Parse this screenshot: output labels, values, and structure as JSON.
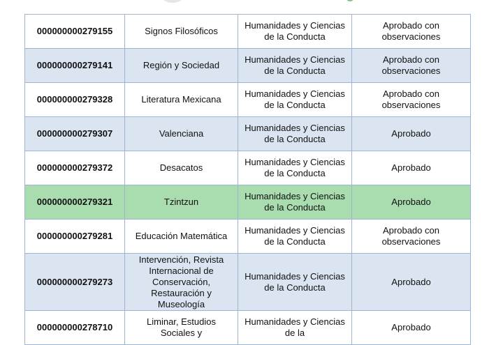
{
  "table": {
    "rows": [
      {
        "id": "000000000279155",
        "journal": "Signos Filosóficos",
        "area": "Humanidades y Ciencias de la Conducta",
        "status": "Aprobado con observaciones",
        "highlight": "none"
      },
      {
        "id": "000000000279141",
        "journal": "Región y Sociedad",
        "area": "Humanidades y Ciencias de la Conducta",
        "status": "Aprobado con observaciones",
        "highlight": "blue"
      },
      {
        "id": "000000000279328",
        "journal": "Literatura Mexicana",
        "area": "Humanidades y Ciencias de la Conducta",
        "status": "Aprobado con observaciones",
        "highlight": "none"
      },
      {
        "id": "000000000279307",
        "journal": "Valenciana",
        "area": "Humanidades y Ciencias de la Conducta",
        "status": "Aprobado",
        "highlight": "blue"
      },
      {
        "id": "000000000279372",
        "journal": "Desacatos",
        "area": "Humanidades y Ciencias de la Conducta",
        "status": "Aprobado",
        "highlight": "none"
      },
      {
        "id": "000000000279321",
        "journal": "Tzintzun",
        "area": "Humanidades y Ciencias de la Conducta",
        "status": "Aprobado",
        "highlight": "green"
      },
      {
        "id": "000000000279281",
        "journal": "Educación Matemática",
        "area": "Humanidades y Ciencias de la Conducta",
        "status": "Aprobado con observaciones",
        "highlight": "none"
      },
      {
        "id": "000000000279273",
        "journal": "Intervención, Revista Internacional de Conservación, Restauración y Museología",
        "area": "Humanidades y Ciencias de la Conducta",
        "status": "Aprobado",
        "highlight": "blue"
      },
      {
        "id": "000000000278710",
        "journal": "Liminar, Estudios Sociales y",
        "area": "Humanidades y Ciencias de la",
        "status": "Aprobado",
        "highlight": "none"
      }
    ],
    "colors": {
      "blue": "#dbe5f1",
      "green": "#a9dcae",
      "border": "#9fb4d0"
    }
  }
}
